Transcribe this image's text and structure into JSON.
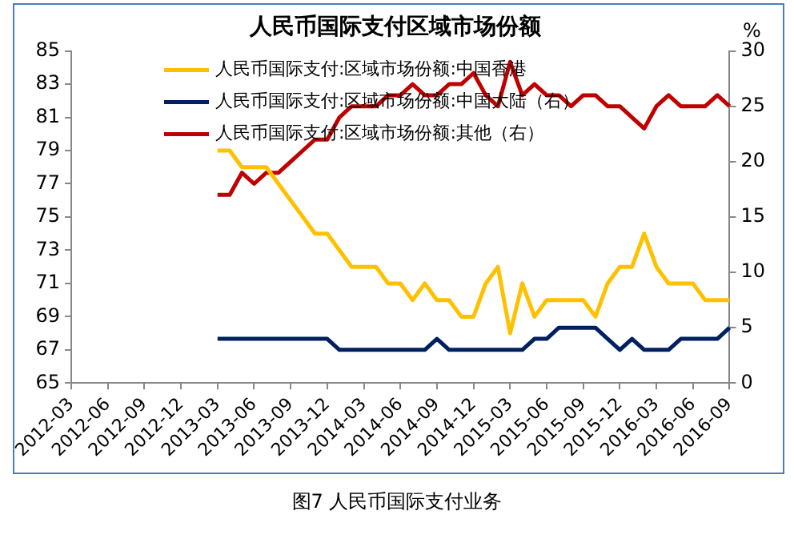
{
  "chart_data": {
    "type": "line",
    "title": "人民币国际支付区域市场份额",
    "y2label": "%",
    "categories": [
      "2012-03",
      null,
      null,
      "2012-06",
      null,
      null,
      "2012-09",
      null,
      null,
      "2012-12",
      null,
      null,
      "2013-03",
      null,
      null,
      "2013-06",
      null,
      null,
      "2013-09",
      null,
      null,
      "2013-12",
      null,
      null,
      "2014-03",
      null,
      null,
      "2014-06",
      null,
      null,
      "2014-09",
      null,
      null,
      "2014-12",
      null,
      null,
      "2015-03",
      null,
      null,
      "2015-06",
      null,
      null,
      "2015-09",
      null,
      null,
      "2015-12",
      null,
      null,
      "2016-03",
      null,
      null,
      "2016-06",
      null,
      null,
      "2016-09"
    ],
    "series": [
      {
        "name": "人民币国际支付:区域市场份额:中国香港",
        "color": "#ffc000",
        "values": [
          null,
          null,
          null,
          null,
          null,
          null,
          null,
          null,
          null,
          null,
          null,
          null,
          79,
          79,
          78,
          78,
          78,
          77,
          76,
          75,
          74,
          74,
          73,
          72,
          72,
          72,
          71,
          71,
          70,
          71,
          70,
          70,
          69,
          69,
          71,
          72,
          68,
          71,
          69,
          70,
          70,
          70,
          70,
          69,
          71,
          72,
          72,
          74,
          72,
          71,
          71,
          71,
          70,
          70,
          70
        ]
      },
      {
        "name": "人民币国际支付:区域市场份额:中国大陆（右）",
        "color": "#002060",
        "axis": "y2",
        "values": [
          null,
          null,
          null,
          null,
          null,
          null,
          null,
          null,
          null,
          null,
          null,
          null,
          4,
          4,
          4,
          4,
          4,
          4,
          4,
          4,
          4,
          4,
          3,
          3,
          3,
          3,
          3,
          3,
          3,
          3,
          4,
          3,
          3,
          3,
          3,
          3,
          3,
          3,
          4,
          4,
          5,
          5,
          5,
          5,
          4,
          3,
          4,
          3,
          3,
          3,
          4,
          4,
          4,
          4,
          5
        ]
      },
      {
        "name": "人民币国际支付:区域市场份额:其他（右）",
        "color": "#c00000",
        "axis": "y2",
        "values": [
          null,
          null,
          null,
          null,
          null,
          null,
          null,
          null,
          null,
          null,
          null,
          null,
          17,
          17,
          19,
          18,
          19,
          19,
          20,
          21,
          22,
          22,
          24,
          25,
          25,
          25,
          26,
          26,
          27,
          26,
          26,
          27,
          27,
          28,
          26,
          25,
          29,
          26,
          27,
          26,
          26,
          25,
          26,
          26,
          25,
          25,
          24,
          23,
          25,
          26,
          25,
          25,
          25,
          26,
          25
        ]
      }
    ],
    "ylim": [
      65,
      85
    ],
    "yticks": [
      65,
      67,
      69,
      71,
      73,
      75,
      77,
      79,
      81,
      83,
      85
    ],
    "y2lim": [
      0,
      30
    ],
    "y2ticks": [
      0,
      5,
      10,
      15,
      20,
      25,
      30
    ],
    "grid": false,
    "legend": "top left",
    "annotations": [
      "图7 人民币国际支付业务"
    ]
  }
}
